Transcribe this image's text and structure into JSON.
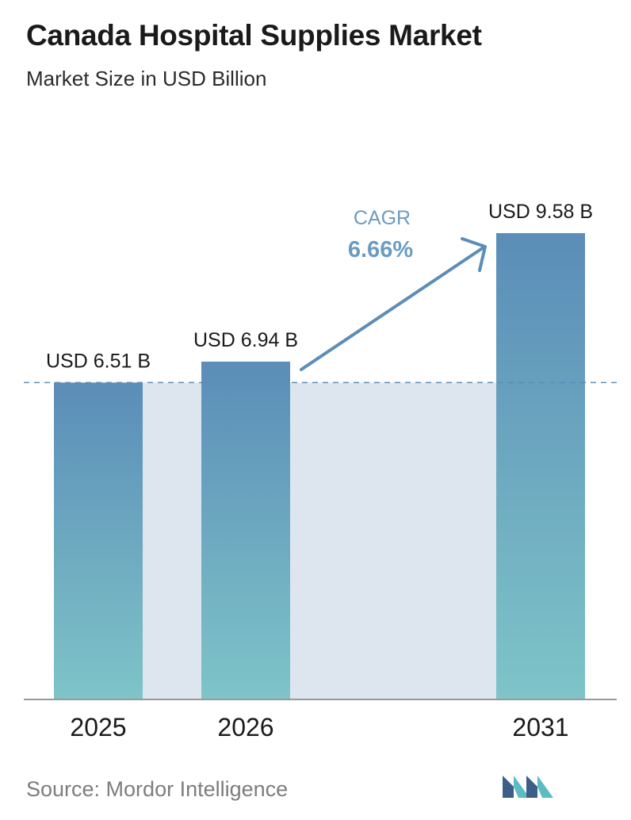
{
  "header": {
    "title": "Canada Hospital Supplies Market",
    "subtitle": "Market Size in USD Billion"
  },
  "chart_data": {
    "type": "bar",
    "title": "Canada Hospital Supplies Market",
    "subtitle": "Market Size in USD Billion",
    "categories": [
      "2025",
      "2026",
      "2031"
    ],
    "values": [
      6.51,
      6.94,
      9.58
    ],
    "value_labels": [
      "USD 6.51 B",
      "USD 6.94 B",
      "USD 9.58 B"
    ],
    "unit": "USD Billion",
    "annotation": {
      "label": "CAGR",
      "value": "6.66%"
    },
    "reference_line": {
      "value": 6.51,
      "style": "dashed"
    },
    "grid": false,
    "legend": "none"
  },
  "footer": {
    "source": "Source:  Mordor Intelligence"
  },
  "colors": {
    "bar_top": "#5b8db8",
    "bar_bottom": "#7ec4c8",
    "shade": "#dde6ef",
    "arrow": "#5b8db8",
    "cagr_label": "#6a9cc3",
    "axis": "#999999",
    "logo_dark": "#3b5f86",
    "logo_teal": "#5bbcc4"
  },
  "logo": {
    "icon": "mordor-intelligence-logo-icon"
  }
}
